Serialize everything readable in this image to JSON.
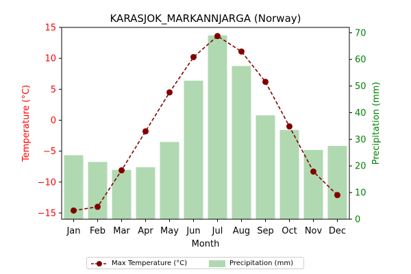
{
  "chart_data": {
    "type": "bar+line",
    "title": "KARASJOK_MARKANNJARGA (Norway)",
    "xlabel": "Month",
    "categories": [
      "Jan",
      "Feb",
      "Mar",
      "Apr",
      "May",
      "Jun",
      "Jul",
      "Aug",
      "Sep",
      "Oct",
      "Nov",
      "Dec"
    ],
    "left_axis": {
      "label": "Temperature (°C)",
      "color": "#ff0000",
      "ylim": [
        -16,
        15
      ],
      "ticks": [
        -15,
        -10,
        -5,
        0,
        5,
        10,
        15
      ]
    },
    "right_axis": {
      "label": "Precipitation (mm)",
      "color": "#008000",
      "ylim": [
        0,
        72
      ],
      "ticks": [
        0,
        10,
        20,
        30,
        40,
        50,
        60,
        70
      ]
    },
    "series": [
      {
        "name": "Max Temperature (°C)",
        "kind": "line",
        "axis": "left",
        "color": "#800000",
        "linestyle": "dashed",
        "marker": "circle",
        "values": [
          -14.6,
          -14.0,
          -8.1,
          -1.8,
          4.5,
          10.2,
          13.6,
          11.1,
          6.2,
          -1.0,
          -8.3,
          -12.1
        ]
      },
      {
        "name": "Precipitation (mm)",
        "kind": "bar",
        "axis": "right",
        "color": "#b0d9b1",
        "values": [
          24,
          21.5,
          18.5,
          19.5,
          29,
          52,
          69,
          57.5,
          39,
          33.5,
          26,
          27.5
        ]
      }
    ],
    "legend_position": "bottom-center",
    "grid": false
  }
}
